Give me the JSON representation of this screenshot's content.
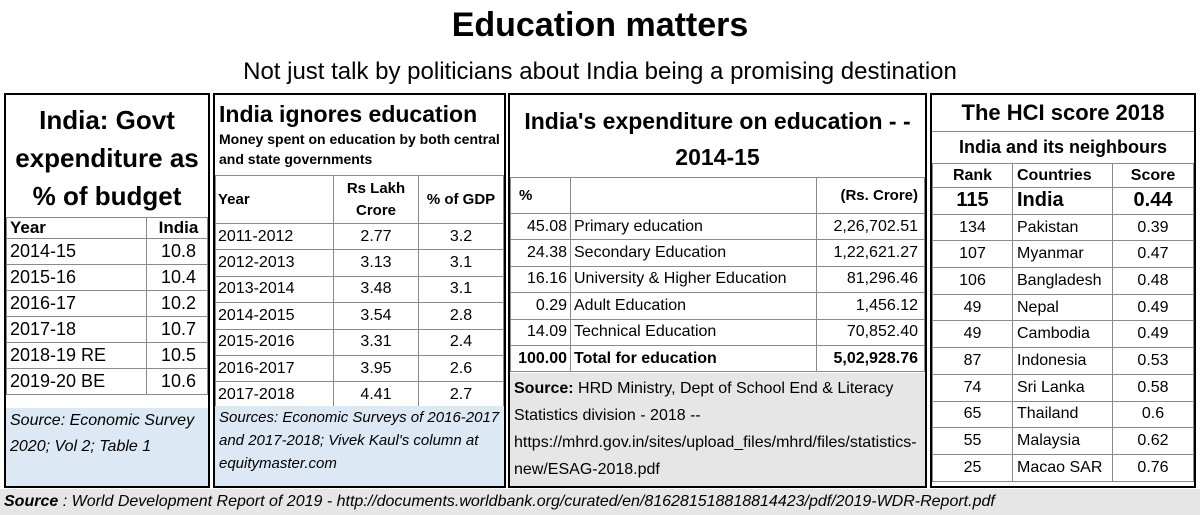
{
  "title": "Education matters",
  "subtitle": "Not just talk by politicians about India being a promising destination",
  "footer": {
    "label": "Source",
    "text": " : World Development Report of 2019 - http://documents.worldbank.org/curated/en/816281518818814423/pdf/2019-WDR-Report.pdf"
  },
  "panel1": {
    "title": "India: Govt expenditure as % of budget",
    "source": "Source: Economic Survey 2020; Vol 2; Table 1"
  },
  "panel2": {
    "title": "India ignores education",
    "subtitle": "Money spent on education by both central and state governments",
    "source": "Sources:  Economic Surveys of 2016-2017 and 2017-2018; Vivek Kaul's column at equitymaster.com"
  },
  "panel3": {
    "title": "India's expenditure on education - - 2014-15",
    "source": "Source: HRD Ministry, Dept of School End & Literacy Statistics division - 2018 -- https://mhrd.gov.in/sites/upload_files/mhrd/files/statistics-new/ESAG-2018.pdf"
  },
  "panel4": {
    "title": "The HCI score 2018",
    "subtitle": "India and its neighbours"
  },
  "chart_data": [
    {
      "type": "table",
      "title": "India: Govt expenditure as % of budget",
      "columns": [
        "Year",
        "India"
      ],
      "rows": [
        [
          "2014-15",
          "10.8"
        ],
        [
          "2015-16",
          "10.4"
        ],
        [
          "2016-17",
          "10.2"
        ],
        [
          " 2017-18",
          "10.7"
        ],
        [
          "2018-19 RE",
          "10.5"
        ],
        [
          "2019-20 BE",
          "10.6"
        ]
      ]
    },
    {
      "type": "table",
      "title": "India ignores education",
      "columns": [
        "Year",
        "Rs Lakh Crore",
        "% of GDP"
      ],
      "rows": [
        [
          "2011-2012",
          "2.77",
          "3.2"
        ],
        [
          "2012-2013",
          "3.13",
          "3.1"
        ],
        [
          "2013-2014",
          "3.48",
          "3.1"
        ],
        [
          "2014-2015",
          "3.54",
          "2.8"
        ],
        [
          "2015-2016",
          "3.31",
          "2.4"
        ],
        [
          "2016-2017",
          "3.95",
          "2.6"
        ],
        [
          "2017-2018",
          "4.41",
          "2.7"
        ]
      ]
    },
    {
      "type": "table",
      "title": "India's expenditure on education - - 2014-15",
      "columns": [
        "%",
        "",
        "(Rs. Crore)"
      ],
      "rows": [
        [
          "45.08",
          "Primary education",
          "2,26,702.51"
        ],
        [
          "24.38",
          "Secondary Education",
          "1,22,621.27"
        ],
        [
          "16.16",
          "University & Higher Education",
          "81,296.46"
        ],
        [
          "0.29",
          "Adult Education",
          "1,456.12"
        ],
        [
          "14.09",
          "Technical Education",
          "70,852.40"
        ],
        [
          "100.00",
          "Total for education",
          "5,02,928.76"
        ]
      ]
    },
    {
      "type": "table",
      "title": "The HCI score 2018",
      "columns": [
        "Rank",
        "Countries",
        "Score"
      ],
      "rows": [
        [
          "115",
          "India",
          "0.44"
        ],
        [
          "134",
          "Pakistan",
          "0.39"
        ],
        [
          "107",
          "Myanmar",
          "0.47"
        ],
        [
          "106",
          "Bangladesh",
          "0.48"
        ],
        [
          "49",
          "Nepal",
          "0.49"
        ],
        [
          "49",
          "Cambodia",
          "0.49"
        ],
        [
          "87",
          "Indonesia",
          "0.53"
        ],
        [
          "74",
          "Sri Lanka",
          "0.58"
        ],
        [
          "65",
          "Thailand",
          "0.6"
        ],
        [
          "55",
          "Malaysia",
          "0.62"
        ],
        [
          "25",
          "Macao SAR",
          "0.76"
        ]
      ]
    }
  ]
}
